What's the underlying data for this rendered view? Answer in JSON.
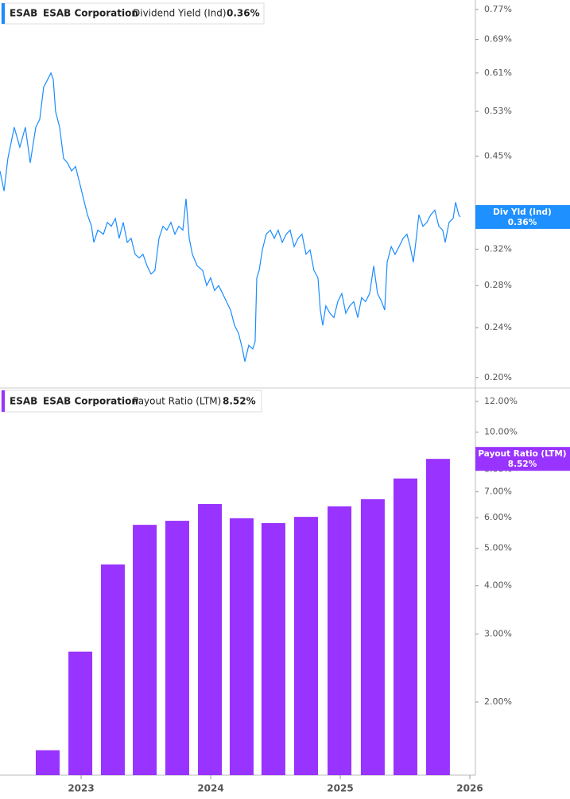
{
  "chart_data": [
    {
      "type": "line",
      "ticker": "ESAB",
      "company": "ESAB Corporation",
      "last_value_label": "0.36%",
      "tag_label": "Div Yld (Ind)",
      "log_scale": true,
      "ylim": [
        0.193,
        0.797
      ],
      "xlim": [
        2022.374,
        2026.043
      ],
      "yticks": [
        {
          "value": 0.2,
          "label": "0.20%"
        },
        {
          "value": 0.24,
          "label": "0.24%"
        },
        {
          "value": 0.28,
          "label": "0.28%"
        },
        {
          "value": 0.32,
          "label": "0.32%"
        },
        {
          "value": 0.45,
          "label": "0.45%"
        },
        {
          "value": 0.53,
          "label": "0.53%"
        },
        {
          "value": 0.61,
          "label": "0.61%"
        },
        {
          "value": 0.69,
          "label": "0.69%"
        },
        {
          "value": 0.77,
          "label": "0.77%"
        }
      ],
      "x": [
        2022.374,
        2022.405,
        2022.435,
        2022.484,
        2022.527,
        2022.57,
        2022.607,
        2022.65,
        2022.681,
        2022.711,
        2022.742,
        2022.767,
        2022.785,
        2022.803,
        2022.834,
        2022.865,
        2022.895,
        2022.926,
        2022.957,
        2022.988,
        2023.018,
        2023.049,
        2023.08,
        2023.098,
        2023.129,
        2023.172,
        2023.202,
        2023.233,
        2023.264,
        2023.294,
        2023.325,
        2023.356,
        2023.386,
        2023.417,
        2023.448,
        2023.478,
        2023.509,
        2023.54,
        2023.57,
        2023.601,
        2023.632,
        2023.662,
        2023.693,
        2023.724,
        2023.754,
        2023.785,
        2023.81,
        2023.834,
        2023.859,
        2023.896,
        2023.938,
        2023.969,
        2024.0,
        2024.03,
        2024.061,
        2024.092,
        2024.122,
        2024.153,
        2024.184,
        2024.215,
        2024.245,
        2024.264,
        2024.294,
        2024.325,
        2024.343,
        2024.356,
        2024.374,
        2024.399,
        2024.429,
        2024.46,
        2024.491,
        2024.521,
        2024.552,
        2024.583,
        2024.613,
        2024.644,
        2024.675,
        2024.705,
        2024.736,
        2024.767,
        2024.797,
        2024.828,
        2024.846,
        2024.865,
        2024.889,
        2024.92,
        2024.951,
        2024.981,
        2025.012,
        2025.043,
        2025.073,
        2025.104,
        2025.135,
        2025.165,
        2025.196,
        2025.227,
        2025.258,
        2025.288,
        2025.319,
        2025.343,
        2025.362,
        2025.393,
        2025.423,
        2025.454,
        2025.485,
        2025.515,
        2025.54,
        2025.564,
        2025.583,
        2025.607,
        2025.638,
        2025.669,
        2025.699,
        2025.73,
        2025.761,
        2025.791,
        2025.81,
        2025.84,
        2025.871,
        2025.89,
        2025.914,
        2025.926
      ],
      "series": [
        {
          "name": "Dividend Yield (Ind)",
          "color": "#1a8cff",
          "values": [
            0.426,
            0.396,
            0.446,
            0.5,
            0.465,
            0.5,
            0.439,
            0.5,
            0.515,
            0.579,
            0.596,
            0.61,
            0.596,
            0.53,
            0.5,
            0.446,
            0.439,
            0.426,
            0.433,
            0.408,
            0.385,
            0.363,
            0.348,
            0.328,
            0.343,
            0.338,
            0.353,
            0.348,
            0.358,
            0.333,
            0.353,
            0.328,
            0.333,
            0.314,
            0.31,
            0.314,
            0.301,
            0.292,
            0.296,
            0.333,
            0.348,
            0.343,
            0.353,
            0.338,
            0.348,
            0.343,
            0.385,
            0.333,
            0.314,
            0.301,
            0.296,
            0.28,
            0.288,
            0.275,
            0.28,
            0.272,
            0.264,
            0.256,
            0.242,
            0.235,
            0.222,
            0.212,
            0.225,
            0.222,
            0.228,
            0.288,
            0.296,
            0.319,
            0.338,
            0.343,
            0.333,
            0.343,
            0.328,
            0.338,
            0.343,
            0.323,
            0.333,
            0.338,
            0.314,
            0.319,
            0.296,
            0.288,
            0.256,
            0.242,
            0.26,
            0.253,
            0.249,
            0.264,
            0.272,
            0.253,
            0.26,
            0.264,
            0.249,
            0.268,
            0.264,
            0.272,
            0.301,
            0.272,
            0.264,
            0.256,
            0.305,
            0.323,
            0.314,
            0.323,
            0.333,
            0.338,
            0.323,
            0.305,
            0.328,
            0.363,
            0.348,
            0.353,
            0.363,
            0.369,
            0.348,
            0.343,
            0.328,
            0.353,
            0.358,
            0.38,
            0.363,
            0.36
          ]
        }
      ]
    },
    {
      "type": "bar",
      "ticker": "ESAB",
      "company": "ESAB Corporation",
      "last_value_label": "8.52%",
      "log_scale": true,
      "ylim": [
        1.293,
        12.88
      ],
      "xlim": [
        2022.374,
        2026.043
      ],
      "yticks": [
        {
          "value": 2,
          "label": "2.00%"
        },
        {
          "value": 3,
          "label": "3.00%"
        },
        {
          "value": 4,
          "label": "4.00%"
        },
        {
          "value": 5,
          "label": "5.00%"
        },
        {
          "value": 6,
          "label": "6.00%"
        },
        {
          "value": 7,
          "label": "7.00%"
        },
        {
          "value": 8,
          "label": "8.00%"
        },
        {
          "value": 10,
          "label": "10.00%"
        },
        {
          "value": 12,
          "label": "12.00%"
        }
      ],
      "xticks": [
        2023,
        2024,
        2025,
        2026
      ],
      "x": [
        2022.742,
        2022.994,
        2023.245,
        2023.491,
        2023.742,
        2023.994,
        2024.239,
        2024.484,
        2024.736,
        2024.994,
        2025.251,
        2025.503,
        2025.754
      ],
      "series": [
        {
          "name": "Payout Ratio (LTM)",
          "color": "#9933ff",
          "values": [
            1.5,
            2.7,
            4.54,
            5.75,
            5.89,
            6.51,
            5.98,
            5.81,
            6.03,
            6.42,
            6.7,
            7.58,
            8.52
          ]
        }
      ]
    }
  ]
}
